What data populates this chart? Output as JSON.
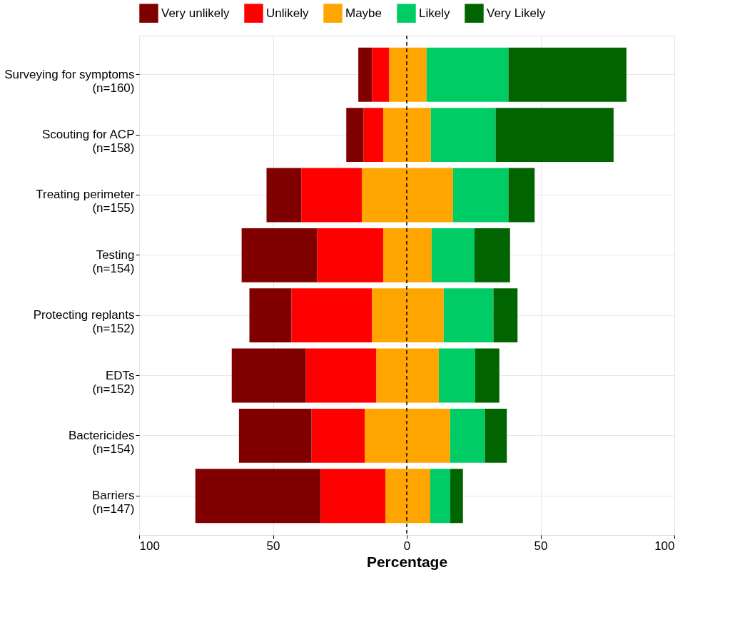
{
  "chart_data": {
    "type": "bar",
    "orientation": "horizontal",
    "stacked": true,
    "categories": [
      "Surveying for symptoms\n(n=160)",
      "Scouting for ACP\n(n=158)",
      "Treating perimeter\n(n=155)",
      "Testing\n(n=154)",
      "Protecting replants\n(n=152)",
      "EDTs\n(n=152)",
      "Bactericides\n(n=154)",
      "Barriers\n(n=147)"
    ],
    "series": [
      {
        "name": "Maybe",
        "color": "#ffa500",
        "values": [
          -6.6,
          -8.8,
          -16.8,
          -8.8,
          -13.0,
          -11.4,
          -15.7,
          -8.0
        ]
      },
      {
        "name": "Unlikely",
        "color": "#ff0000",
        "values": [
          -6.4,
          -7.4,
          -22.6,
          -24.7,
          -30.1,
          -26.3,
          -19.9,
          -24.2
        ]
      },
      {
        "name": "Very unlikely",
        "color": "#800000",
        "values": [
          -5.1,
          -6.4,
          -13.0,
          -28.2,
          -15.7,
          -27.7,
          -27.1,
          -46.8
        ]
      },
      {
        "color": "#ffa500",
        "values": [
          7.4,
          9.0,
          17.3,
          9.3,
          13.8,
          12.0,
          16.2,
          8.8
        ]
      },
      {
        "name": "Likely",
        "color": "#00cc66",
        "values": [
          30.6,
          24.2,
          20.7,
          16.0,
          18.6,
          13.6,
          13.0,
          7.4
        ]
      },
      {
        "name": "Very Likely",
        "color": "#006400",
        "values": [
          44.1,
          44.1,
          9.8,
          13.3,
          9.0,
          9.0,
          8.2,
          4.8
        ]
      }
    ],
    "xlim": [
      -100,
      100
    ],
    "xticks": [
      {
        "value": -100,
        "label": "100"
      },
      {
        "value": -50,
        "label": "50"
      },
      0,
      50,
      100
    ],
    "xlabel": "Percentage",
    "grid": true,
    "legend": "top",
    "ref_lines": [
      {
        "axis": "x",
        "value": 0,
        "label": null,
        "color": "#000000",
        "line_style": "dashed"
      }
    ]
  }
}
